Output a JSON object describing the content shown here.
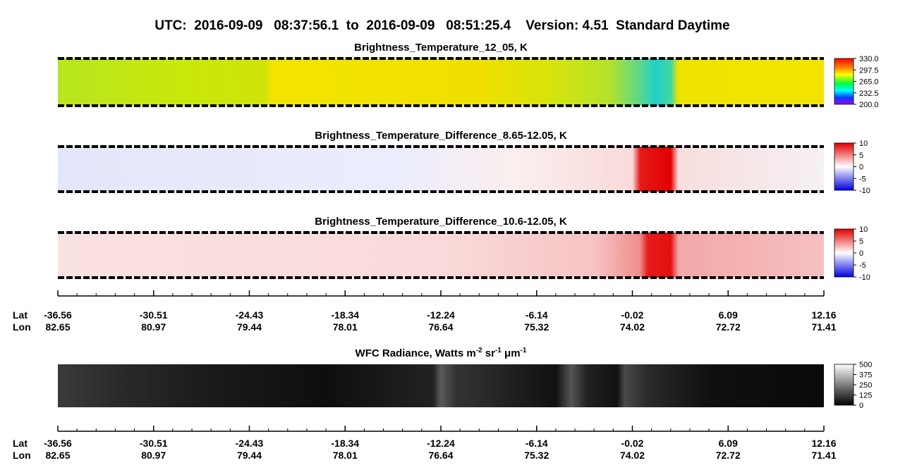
{
  "title": "UTC:  2016-09-09   08:37:56.1  to  2016-09-09   08:51:25.4    Version: 4.51  Standard Daytime",
  "panels": [
    {
      "title": "Brightness_Temperature_12_05, K",
      "colorbar": [
        "330.0",
        "297.5",
        "265.0",
        "232.5",
        "200.0"
      ]
    },
    {
      "title": "Brightness_Temperature_Difference_8.65-12.05, K",
      "colorbar": [
        "10",
        "5",
        "0",
        "-5",
        "-10"
      ]
    },
    {
      "title": "Brightness_Temperature_Difference_10.6-12.05, K",
      "colorbar": [
        "10",
        "5",
        "0",
        "-5",
        "-10"
      ]
    }
  ],
  "axes": [
    {
      "lat_label": "Lat",
      "lon_label": "Lon",
      "lat": [
        "-36.56",
        "-30.51",
        "-24.43",
        "-18.34",
        "-12.24",
        "-6.14",
        "-0.02",
        "6.09",
        "12.16"
      ],
      "lon": [
        "82.65",
        "80.97",
        "79.44",
        "78.01",
        "76.64",
        "75.32",
        "74.02",
        "72.72",
        "71.41"
      ]
    },
    {
      "lat_label": "Lat",
      "lon_label": "Lon",
      "lat": [
        "-36.56",
        "-30.51",
        "-24.43",
        "-18.34",
        "-12.24",
        "-6.14",
        "-0.02",
        "6.09",
        "12.16"
      ],
      "lon": [
        "82.65",
        "80.97",
        "79.44",
        "78.01",
        "76.64",
        "75.32",
        "74.02",
        "72.72",
        "71.41"
      ]
    }
  ],
  "wfc": {
    "title_parts": [
      {
        "text": "WFC Radiance, Watts m"
      },
      {
        "sup": "-2"
      },
      {
        "text": " sr"
      },
      {
        "sup": "-1"
      },
      {
        "text": " μm"
      },
      {
        "sup": "-1"
      }
    ],
    "colorbar": [
      "500",
      "375",
      "250",
      "125",
      "0"
    ]
  }
}
